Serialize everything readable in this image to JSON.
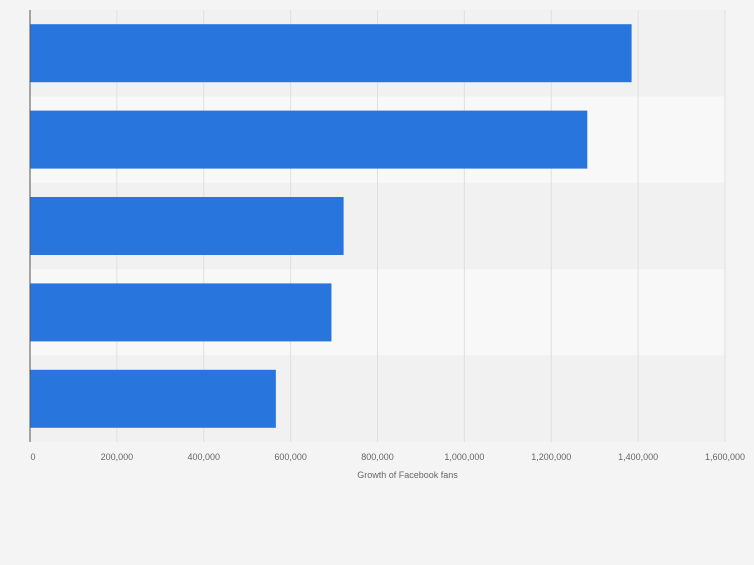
{
  "chart_data": {
    "type": "bar",
    "orientation": "horizontal",
    "categories": [
      "",
      "",
      "",
      "",
      ""
    ],
    "series": [
      {
        "values": [
          1385000,
          1283000,
          722000,
          694000,
          566000
        ]
      }
    ],
    "title": "",
    "xlabel": "Growth of Facebook fans",
    "ylabel": "",
    "xlim": [
      0,
      1600000
    ],
    "xticks": [
      0,
      200000,
      400000,
      600000,
      800000,
      1000000,
      1200000,
      1400000,
      1600000
    ],
    "xtick_labels": [
      "0",
      "200,000",
      "400,000",
      "600,000",
      "800,000",
      "1,000,000",
      "1,200,000",
      "1,400,000",
      "1,600,000"
    ],
    "grid": true,
    "legend": "none",
    "colors": {
      "bar": "#2876dd",
      "band_dark": "#f1f1f1",
      "band_light": "#f8f8f8",
      "grid": "#e0e0e0",
      "axis": "#555555",
      "tick_text": "#666666"
    }
  }
}
